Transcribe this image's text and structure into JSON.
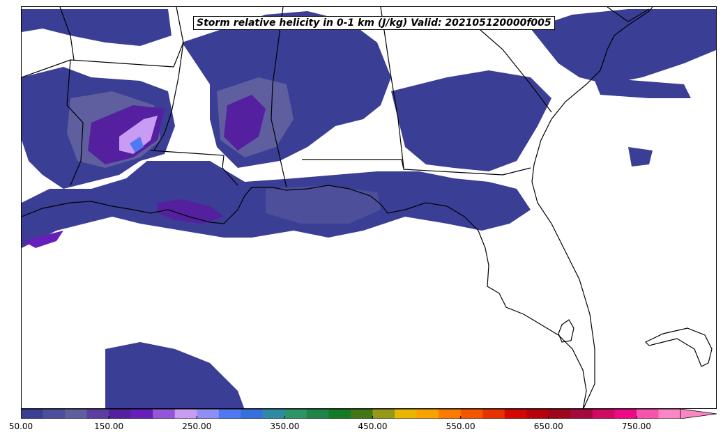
{
  "title": "Storm relative helicity in 0-1 km (J/kg) Valid: 202105120000f005",
  "colorbar": {
    "min": 50,
    "max": 800,
    "extend": "max",
    "ticks": [
      "50.00",
      "150.00",
      "250.00",
      "350.00",
      "450.00",
      "550.00",
      "650.00",
      "750.00"
    ],
    "tick_values": [
      50,
      150,
      250,
      350,
      450,
      550,
      650,
      750
    ],
    "colors": [
      "#3a3e94",
      "#4d4f9a",
      "#5f5e9f",
      "#5a3ea0",
      "#54209f",
      "#661fb8",
      "#9555d8",
      "#c79cf2",
      "#8e90f4",
      "#4e79f2",
      "#3570dd",
      "#2f8aa5",
      "#2d9566",
      "#1e8546",
      "#137a25",
      "#437715",
      "#959818",
      "#e8b600",
      "#f8a200",
      "#fb7a00",
      "#f65500",
      "#e53200",
      "#d30600",
      "#b8020b",
      "#9e0619",
      "#a3093d",
      "#cf0a61",
      "#ec0b86",
      "#f754ac",
      "#fb86c4"
    ]
  },
  "map": {
    "region": "Southeastern United States",
    "shading_colors": {
      "low": "#3a3e94",
      "mid": "#5f5e9f",
      "high": "#54209f",
      "peak": "#8e90f4",
      "max": "#4e79f2"
    }
  }
}
